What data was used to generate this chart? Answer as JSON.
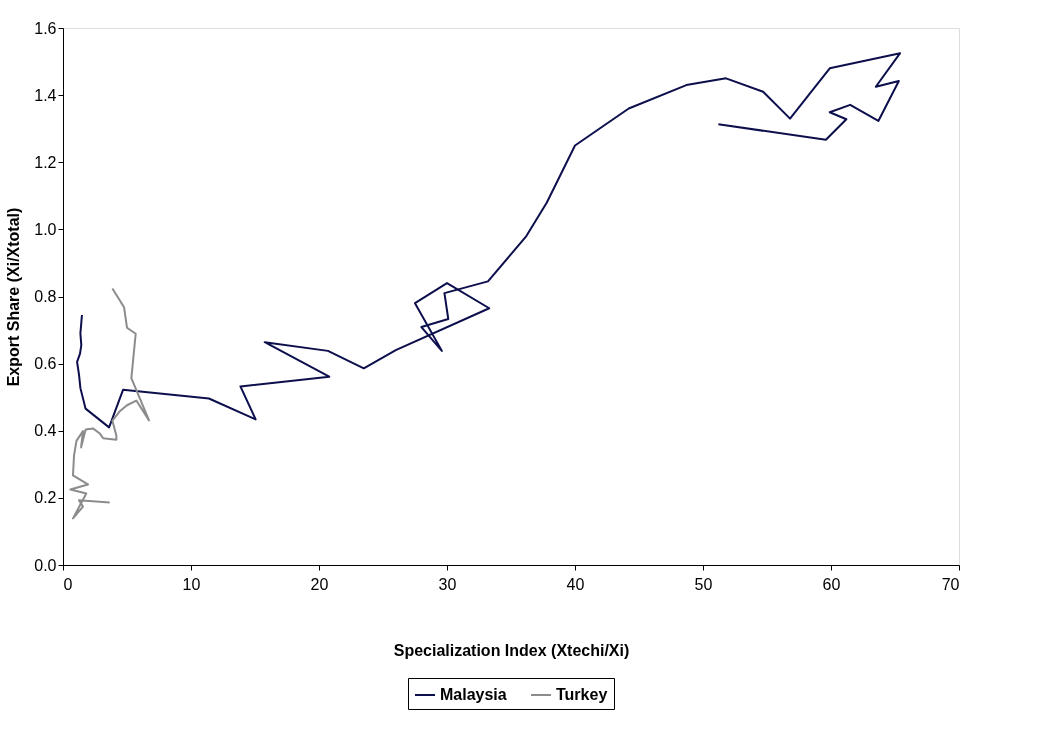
{
  "chart_data": {
    "type": "line",
    "xlabel": "Specialization Index (Xtechi/Xi)",
    "ylabel": "Export Share (Xi/Xtotal)",
    "xlim": [
      0,
      70
    ],
    "xticks": [
      0,
      10,
      20,
      30,
      40,
      50,
      60,
      70
    ],
    "ylim": [
      0,
      1.6
    ],
    "yticks": [
      {
        "value": 0,
        "label": "0.0"
      },
      {
        "value": 0.2,
        "label": "0.2"
      },
      {
        "value": 0.4,
        "label": "0.4"
      },
      {
        "value": 0.6,
        "label": "0.6"
      },
      {
        "value": 0.8,
        "label": "0.8"
      },
      {
        "value": 1,
        "label": "1.0"
      },
      {
        "value": 1.2,
        "label": "1.2"
      },
      {
        "value": 1.4,
        "label": "1.4"
      },
      {
        "value": 1.6,
        "label": "1.6"
      }
    ],
    "grid": false,
    "legend": "bottom",
    "marker": "none",
    "line_style": "solid",
    "series": [
      {
        "name": "Malaysia",
        "color": "#0c0f4c",
        "x": [
          1.48,
          1.36,
          1.43,
          1.33,
          1.1,
          1.25,
          1.36,
          1.76,
          3.6,
          4.69,
          11.4,
          15.05,
          13.86,
          20.8,
          15.76,
          20.7,
          23.5,
          26.0,
          33.3,
          30.0,
          27.5,
          29.6,
          28.0,
          30.1,
          29.8,
          33.2,
          36.2,
          37.8,
          40.0,
          44.2,
          48.7,
          51.8,
          54.7,
          56.8,
          59.9,
          65.4,
          63.5,
          65.3,
          63.7,
          61.5,
          59.9,
          61.2,
          59.6,
          51.2
        ],
        "values": [
          0.745,
          0.69,
          0.655,
          0.63,
          0.605,
          0.567,
          0.527,
          0.466,
          0.41,
          0.522,
          0.496,
          0.434,
          0.532,
          0.561,
          0.664,
          0.638,
          0.586,
          0.64,
          0.765,
          0.84,
          0.78,
          0.638,
          0.709,
          0.733,
          0.81,
          0.845,
          0.98,
          1.08,
          1.25,
          1.36,
          1.43,
          1.45,
          1.41,
          1.33,
          1.48,
          1.525,
          1.425,
          1.442,
          1.323,
          1.371,
          1.349,
          1.328,
          1.267,
          1.313
        ]
      },
      {
        "name": "Turkey",
        "color": "#8c8c8c",
        "x": [
          3.86,
          4.77,
          5.0,
          5.68,
          5.34,
          6.72,
          5.73,
          5.0,
          4.43,
          3.86,
          4.17,
          4.17,
          3.13,
          2.87,
          2.34,
          1.77,
          1.41,
          1.56,
          1.05,
          0.86,
          0.78,
          1.95,
          0.58,
          1.82,
          0.78,
          1.56,
          1.25,
          3.65
        ],
        "values": [
          0.824,
          0.768,
          0.707,
          0.689,
          0.557,
          0.431,
          0.49,
          0.476,
          0.458,
          0.43,
          0.385,
          0.373,
          0.378,
          0.392,
          0.407,
          0.404,
          0.35,
          0.399,
          0.37,
          0.326,
          0.267,
          0.24,
          0.225,
          0.213,
          0.139,
          0.174,
          0.193,
          0.186
        ]
      }
    ]
  }
}
